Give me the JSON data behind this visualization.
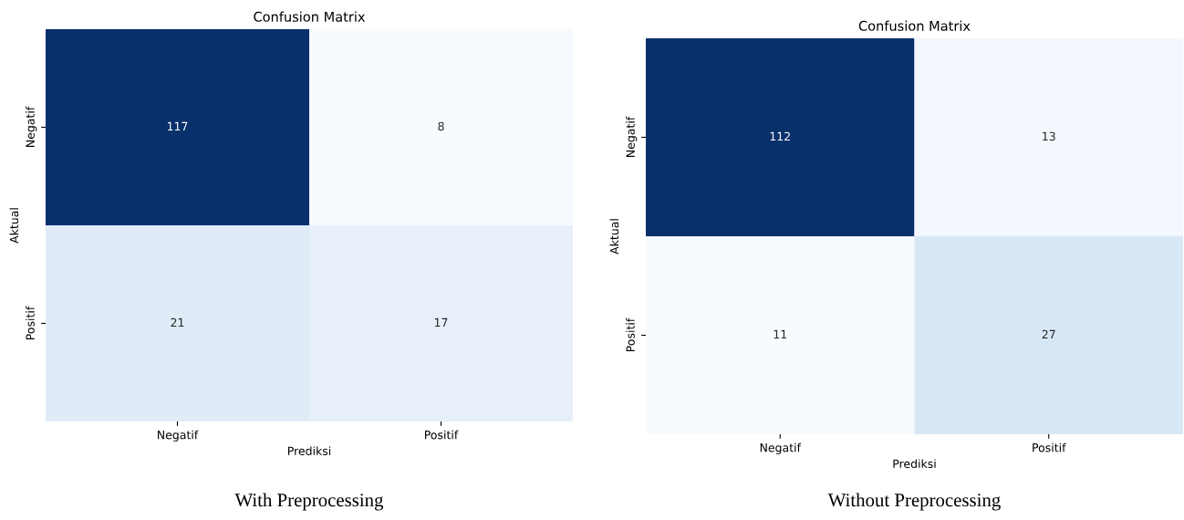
{
  "chart_data": [
    {
      "type": "heatmap",
      "title": "Confusion Matrix",
      "xlabel": "Prediksi",
      "ylabel": "Aktual",
      "categories": [
        "Negatif",
        "Positif"
      ],
      "y_categories": [
        "Negatif",
        "Positif"
      ],
      "cells": [
        [
          117,
          8
        ],
        [
          21,
          17
        ]
      ],
      "data_labels": true,
      "annotations": [
        "With Preprocessing"
      ]
    },
    {
      "type": "heatmap",
      "title": "Confusion Matrix",
      "xlabel": "Prediksi",
      "ylabel": "Aktual",
      "categories": [
        "Negatif",
        "Positif"
      ],
      "y_categories": [
        "Negatif",
        "Positif"
      ],
      "cells": [
        [
          112,
          13
        ],
        [
          11,
          27
        ]
      ],
      "data_labels": true,
      "annotations": [
        "Without Preprocessing"
      ]
    }
  ]
}
